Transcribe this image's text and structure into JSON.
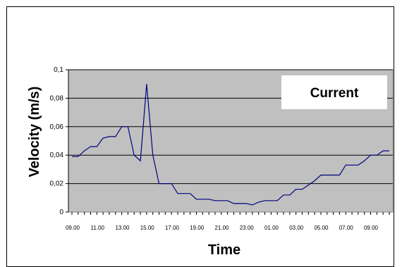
{
  "chart_data": {
    "type": "line",
    "title": "",
    "xlabel": "Time",
    "ylabel": "Velocity (m/s)",
    "ylim": [
      0,
      0.1
    ],
    "ytick_labels": [
      "0",
      "0,02",
      "0,04",
      "0,06",
      "0,08",
      "0,1"
    ],
    "xtick_labels": [
      "09.00",
      "11.00",
      "13.00",
      "15.00",
      "17.00",
      "19.00",
      "21.00",
      "23.00",
      "01.00",
      "03.00",
      "05.00",
      "07.00",
      "09.00"
    ],
    "grid": true,
    "legend_text": "Current",
    "legend_position": "top-right",
    "plot_background": "#c0c0c0",
    "line_color": "#000080",
    "series": [
      {
        "name": "Current",
        "values": [
          0.039,
          0.039,
          0.043,
          0.046,
          0.046,
          0.052,
          0.053,
          0.053,
          0.06,
          0.06,
          0.04,
          0.036,
          0.09,
          0.04,
          0.02,
          0.02,
          0.02,
          0.013,
          0.013,
          0.013,
          0.009,
          0.009,
          0.009,
          0.008,
          0.008,
          0.008,
          0.006,
          0.006,
          0.006,
          0.005,
          0.007,
          0.008,
          0.008,
          0.008,
          0.012,
          0.012,
          0.016,
          0.016,
          0.019,
          0.022,
          0.026,
          0.026,
          0.026,
          0.026,
          0.033,
          0.033,
          0.033,
          0.036,
          0.04,
          0.04,
          0.043,
          0.043
        ]
      }
    ]
  }
}
